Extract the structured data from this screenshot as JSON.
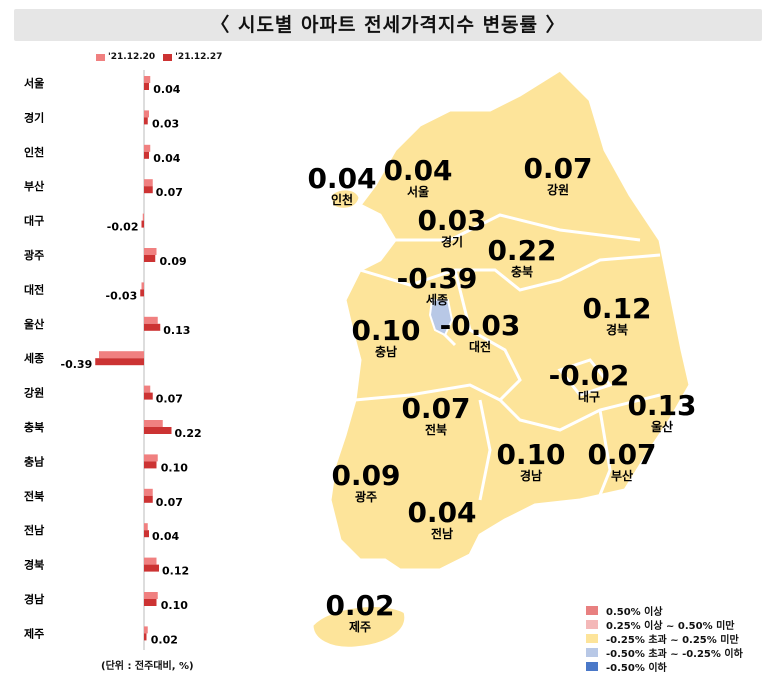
{
  "title": "〈 시도별 아파트 전세가격지수 변동률 〉",
  "unit_note": "(단위 : 전주대비, %)",
  "colors": {
    "prev": "#f08080",
    "curr": "#cc3333",
    "map_fill": "#fde49a",
    "map_low": "#b8c8e6",
    "map_stroke": "#ffffff"
  },
  "chart_data": {
    "type": "bar",
    "orientation": "horizontal",
    "categories": [
      "서울",
      "경기",
      "인천",
      "부산",
      "대구",
      "광주",
      "대전",
      "울산",
      "세종",
      "강원",
      "충북",
      "충남",
      "전북",
      "전남",
      "경북",
      "경남",
      "제주"
    ],
    "series": [
      {
        "name": "'21.12.20",
        "values": [
          0.05,
          0.04,
          0.05,
          0.07,
          -0.01,
          0.1,
          -0.02,
          0.11,
          -0.36,
          0.05,
          0.15,
          0.11,
          0.07,
          0.03,
          0.1,
          0.11,
          0.03
        ]
      },
      {
        "name": "'21.12.27",
        "values": [
          0.04,
          0.03,
          0.04,
          0.07,
          -0.02,
          0.09,
          -0.03,
          0.13,
          -0.39,
          0.07,
          0.22,
          0.1,
          0.07,
          0.04,
          0.12,
          0.1,
          0.02
        ]
      }
    ],
    "data_labels": [
      "0.04",
      "0.03",
      "0.04",
      "0.07",
      "-0.02",
      "0.09",
      "-0.03",
      "0.13",
      "-0.39",
      "0.07",
      "0.22",
      "0.10",
      "0.07",
      "0.04",
      "0.12",
      "0.10",
      "0.02"
    ]
  },
  "map": {
    "regions": [
      {
        "name": "인천",
        "value": "0.04"
      },
      {
        "name": "서울",
        "value": "0.04"
      },
      {
        "name": "강원",
        "value": "0.07"
      },
      {
        "name": "경기",
        "value": "0.03"
      },
      {
        "name": "충북",
        "value": "0.22"
      },
      {
        "name": "세종",
        "value": "-0.39"
      },
      {
        "name": "충남",
        "value": "0.10"
      },
      {
        "name": "대전",
        "value": "-0.03"
      },
      {
        "name": "경북",
        "value": "0.12"
      },
      {
        "name": "대구",
        "value": "-0.02"
      },
      {
        "name": "울산",
        "value": "0.13"
      },
      {
        "name": "전북",
        "value": "0.07"
      },
      {
        "name": "경남",
        "value": "0.10"
      },
      {
        "name": "부산",
        "value": "0.07"
      },
      {
        "name": "광주",
        "value": "0.09"
      },
      {
        "name": "전남",
        "value": "0.04"
      },
      {
        "name": "제주",
        "value": "0.02"
      }
    ]
  },
  "legend": [
    {
      "label": "0.50% 이상",
      "color": "#e88080"
    },
    {
      "label": "0.25% 이상 ~ 0.50% 미만",
      "color": "#f4b8b8"
    },
    {
      "label": "-0.25% 초과 ~ 0.25% 미만",
      "color": "#fde49a"
    },
    {
      "label": "-0.50% 초과 ~ -0.25% 이하",
      "color": "#b8c8e6"
    },
    {
      "label": "-0.50% 이하",
      "color": "#4a78c8"
    }
  ]
}
